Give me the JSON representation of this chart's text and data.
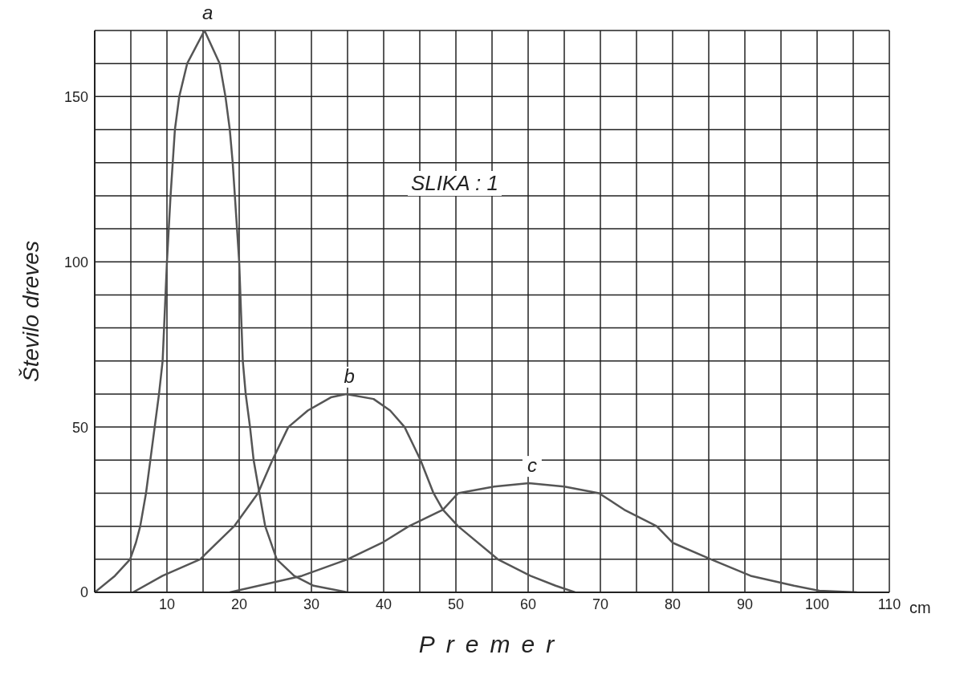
{
  "chart_data": {
    "type": "line",
    "title": "SLIKA : 1",
    "xlabel": "Premer",
    "ylabel": "Število dreves",
    "annotations": [
      "cm"
    ],
    "xlim": [
      0,
      110
    ],
    "ylim": [
      0,
      170
    ],
    "xticks": [
      {
        "value": 0,
        "label": null
      },
      {
        "value": 5,
        "label": null
      },
      10,
      {
        "value": 15,
        "label": null
      },
      20,
      {
        "value": 25,
        "label": null
      },
      30,
      {
        "value": 35,
        "label": null
      },
      40,
      {
        "value": 45,
        "label": null
      },
      50,
      {
        "value": 55,
        "label": null
      },
      60,
      {
        "value": 65,
        "label": null
      },
      70,
      {
        "value": 75,
        "label": null
      },
      80,
      {
        "value": 85,
        "label": null
      },
      90,
      {
        "value": 95,
        "label": null
      },
      100,
      {
        "value": 105,
        "label": null
      },
      110
    ],
    "yticks": [
      0,
      {
        "value": 10,
        "label": null
      },
      {
        "value": 20,
        "label": null
      },
      {
        "value": 30,
        "label": null
      },
      {
        "value": 40,
        "label": null
      },
      50,
      {
        "value": 60,
        "label": null
      },
      {
        "value": 70,
        "label": null
      },
      {
        "value": 80,
        "label": null
      },
      {
        "value": 90,
        "label": null
      },
      100,
      {
        "value": 110,
        "label": null
      },
      {
        "value": 120,
        "label": null
      },
      {
        "value": 130,
        "label": null
      },
      {
        "value": 140,
        "label": null
      },
      150,
      {
        "value": 160,
        "label": null
      },
      {
        "value": 170,
        "label": null
      }
    ],
    "grid": true,
    "marker": "none",
    "line_style": "solid",
    "series": [
      {
        "name": "a",
        "color": "#555555",
        "x": [
          0,
          2.8,
          4.9,
          5.7,
          6.3,
          7.1,
          7.7,
          8.3,
          8.9,
          9.4,
          10,
          10.5,
          11.1,
          11.7,
          12.8,
          15.2,
          17.3,
          18.1,
          18.7,
          19.1,
          19.4,
          20,
          20.5,
          20.9,
          21.5,
          22,
          22.8,
          23.6,
          25.2,
          27.6,
          30.3,
          35
        ],
        "values": [
          0,
          5,
          10,
          15,
          20,
          30,
          40,
          50,
          60,
          70,
          100,
          120,
          140,
          150,
          160,
          170,
          160,
          150,
          140,
          130,
          120,
          100,
          70,
          60,
          50,
          40,
          30,
          20,
          10,
          5,
          2,
          0
        ]
      },
      {
        "name": "b",
        "color": "#555555",
        "x": [
          5.3,
          9.4,
          14.6,
          19.3,
          22.6,
          24.6,
          26.8,
          29.5,
          32.7,
          34.8,
          38.6,
          40.9,
          42.9,
          45.1,
          46.9,
          48.2,
          50.3,
          55.8,
          60.3,
          63.8,
          66.5
        ],
        "values": [
          0,
          5,
          10,
          20,
          30,
          40,
          50,
          55,
          59,
          60,
          58.5,
          55,
          50,
          40,
          30,
          25,
          20,
          10,
          5,
          2,
          0
        ]
      },
      {
        "name": "c",
        "color": "#555555",
        "x": [
          18.7,
          28.7,
          35,
          39.8,
          43.5,
          48.2,
          50.3,
          55.3,
          60.1,
          65,
          69.8,
          73.3,
          77.8,
          80,
          85.3,
          90.8,
          96.8,
          100.3,
          105.5
        ],
        "values": [
          0,
          5,
          10,
          15,
          20,
          25,
          30,
          32,
          33,
          32,
          30,
          25,
          20,
          15,
          10,
          5,
          2,
          0.5,
          0
        ]
      }
    ]
  }
}
